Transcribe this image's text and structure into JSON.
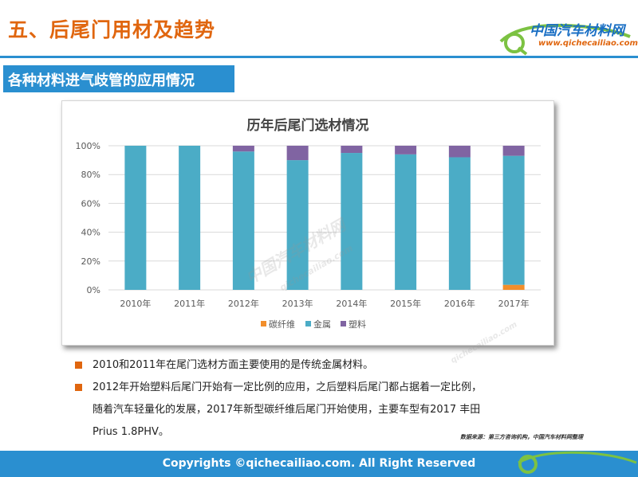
{
  "header": {
    "title": "五、后尾门用材及趋势",
    "logo_name": "中国汽车材料网",
    "logo_url": "www.qichecailiao.com"
  },
  "section": {
    "subtitle": "各种材料进气歧管的应用情况"
  },
  "chart_data": {
    "type": "bar",
    "stacked": true,
    "title": "历年后尾门选材情况",
    "categories": [
      "2010年",
      "2011年",
      "2012年",
      "2013年",
      "2014年",
      "2015年",
      "2016年",
      "2017年"
    ],
    "series": [
      {
        "name": "碳纤维",
        "color": "#f28e2b",
        "values": [
          0,
          0,
          0,
          0,
          0,
          0,
          0,
          3.5
        ]
      },
      {
        "name": "金属",
        "color": "#4bacc6",
        "values": [
          100,
          100,
          96,
          90,
          95,
          94,
          92,
          89.5
        ]
      },
      {
        "name": "塑料",
        "color": "#8064a2",
        "values": [
          0,
          0,
          4,
          10,
          5,
          6,
          8,
          7
        ]
      }
    ],
    "yticks": [
      "0%",
      "20%",
      "40%",
      "60%",
      "80%",
      "100%"
    ],
    "ylim": [
      0,
      100
    ],
    "legend_position": "bottom"
  },
  "bullets": [
    {
      "lines": [
        "2010和2011年在尾门选材方面主要使用的是传统金属材料。"
      ]
    },
    {
      "lines": [
        "2012年开始塑料后尾门开始有一定比例的应用，之后塑料后尾门都占据着一定比例，",
        "随着汽车轻量化的发展，2017年新型碳纤维后尾门开始使用，主要车型有2017 丰田",
        "Prius 1.8PHV。"
      ]
    }
  ],
  "source_note": "数据来源：第三方咨询机构，中国汽车材料网整理",
  "footer": {
    "copyright": "Copyrights ©qichecailiao.com. All Right Reserved"
  },
  "watermark": {
    "text": "中国汽车材料网",
    "url": "qichecailiao.com"
  },
  "colors": {
    "brand_blue": "#2a8fd0",
    "accent_orange": "#e0660f"
  }
}
